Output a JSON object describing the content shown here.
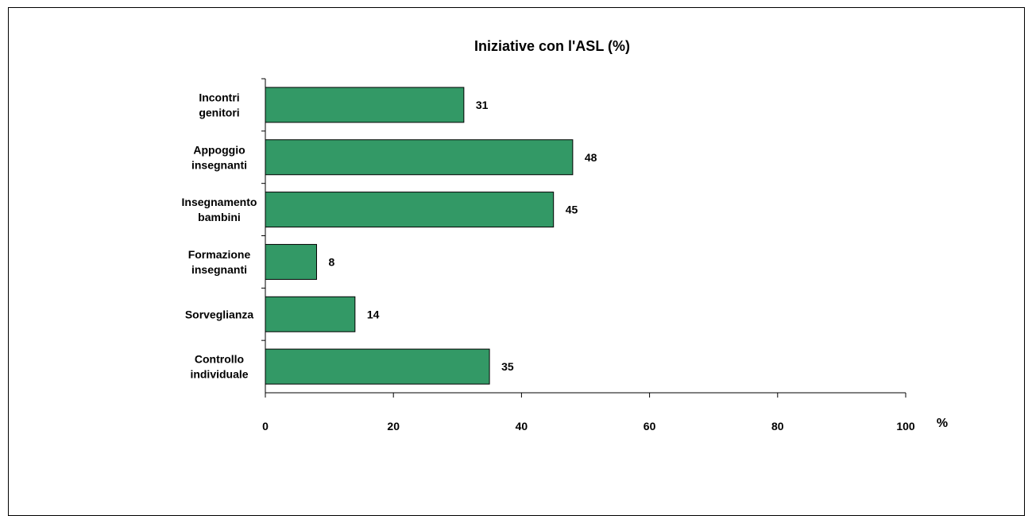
{
  "chart_data": {
    "type": "bar",
    "orientation": "horizontal",
    "title": "Iniziative con l'ASL (%)",
    "categories": [
      [
        "Incontri",
        "genitori"
      ],
      [
        "Appoggio",
        "insegnanti"
      ],
      [
        "Insegnamento",
        "bambini"
      ],
      [
        "Formazione",
        "insegnanti"
      ],
      [
        "Sorveglianza"
      ],
      [
        "Controllo",
        "individuale"
      ]
    ],
    "values": [
      31,
      48,
      45,
      8,
      14,
      35
    ],
    "value_labels": [
      "31",
      "48",
      "45",
      "8",
      "14",
      "35"
    ],
    "xlim": [
      0,
      100
    ],
    "xticks": [
      0,
      20,
      40,
      60,
      80,
      100
    ],
    "xtick_labels": [
      "0",
      "20",
      "40",
      "60",
      "80",
      "100"
    ],
    "xunit": "%",
    "bar_color": "#339966",
    "bar_border_color": "#000000",
    "grid": false,
    "legend": "none"
  }
}
